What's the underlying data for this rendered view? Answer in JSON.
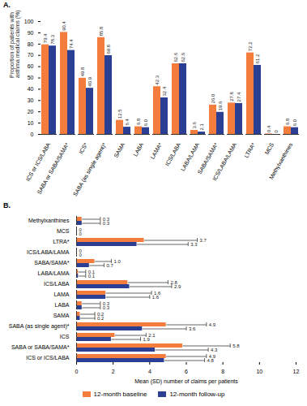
{
  "chart_data": [
    {
      "type": "bar",
      "title": "A.",
      "categories": [
        "ICS or ICS/LABA",
        "SABA or SABA/SAMA*",
        "ICS*",
        "SABA (as single agent)*",
        "SAMA",
        "LABA",
        "LAMA*",
        "ICS/LABA",
        "LABA/LAMA",
        "SABA/SAMA*",
        "ICS/LABA/LAMA",
        "LTRA*",
        "MCS",
        "Methylxanthines"
      ],
      "y_label": "Proportion of patients with asthma medical claims (%)",
      "ylim": [
        0,
        100
      ],
      "yticks": [
        0,
        10,
        20,
        30,
        40,
        50,
        60,
        70,
        80,
        90,
        100
      ],
      "data_labels": true,
      "series": [
        {
          "name": "12-month baseline",
          "color": "#f47c3c",
          "values": [
            79.4,
            90.4,
            49.8,
            85.8,
            12.5,
            6.8,
            42.3,
            62.6,
            3.6,
            26.0,
            27.8,
            72.2,
            0.4,
            6.8
          ],
          "value_labels": [
            "79.4",
            "90.4",
            "49.8",
            "85.8",
            "12.5",
            "6.8",
            "42.3",
            "62.6",
            "3.6",
            "26.0",
            "27.8",
            "72.2",
            "0.4",
            "6.8"
          ]
        },
        {
          "name": "12-month follow-up",
          "color": "#2a3e94",
          "values": [
            78.3,
            74.4,
            40.9,
            69.8,
            6.4,
            6.0,
            32.4,
            62.6,
            2.1,
            19.6,
            27.4,
            61.2,
            0,
            6.0
          ],
          "value_labels": [
            "78.3",
            "74.4",
            "40.9",
            "69.8",
            "6.4",
            "6.0",
            "32.4",
            "62.6",
            "2.1",
            "19.6",
            "27.4",
            "61.2",
            "0",
            "6.0"
          ]
        }
      ]
    },
    {
      "type": "bar",
      "title": "B.",
      "orientation": "horizontal",
      "categories": [
        "Methylxanthines",
        "MCS",
        "LTRA*",
        "ICS/LABA/LAMA",
        "SABA/SAMA*",
        "LABA/LAMA",
        "ICS/LABA",
        "LAMA",
        "LABA",
        "SAMA",
        "SABA (as single agent)*",
        "ICS",
        "SABA or SABA/SAMA*",
        "ICS or ICS/LABA"
      ],
      "x_label": "Mean (SD) number of claims per patients",
      "xlim": [
        0,
        12
      ],
      "xticks": [
        0,
        2,
        4,
        6,
        8,
        10,
        12
      ],
      "data_labels": true,
      "series": [
        {
          "name": "12-month baseline",
          "color": "#f47c3c",
          "values": [
            0.3,
            0,
            3.7,
            0,
            1.0,
            0.1,
            2.8,
            1.6,
            0.3,
            0.2,
            4.9,
            2.1,
            5.8,
            4.9
          ],
          "sd": [
            1.0,
            0,
            2.9,
            0,
            0.9,
            0.4,
            2.2,
            2.5,
            1.0,
            0.8,
            2.2,
            1.7,
            2.6,
            2.2
          ],
          "value_labels": [
            "0.3",
            "0",
            "3.7",
            "0",
            "1.0",
            "0.1",
            "2.8",
            "1.6",
            "0.3",
            "0.2",
            "4.9",
            "2.1",
            "5.8",
            "4.9"
          ]
        },
        {
          "name": "12-month follow-up",
          "color": "#2a3e94",
          "values": [
            0.3,
            0,
            3.3,
            0,
            0.7,
            0.1,
            2.9,
            1.6,
            0.3,
            0.2,
            3.6,
            1.9,
            4.3,
            4.8
          ],
          "sd": [
            1.0,
            0,
            2.8,
            0,
            0.8,
            0.4,
            2.3,
            2.4,
            1.0,
            0.8,
            2.4,
            1.6,
            2.9,
            2.2
          ],
          "value_labels": [
            "0.3",
            "0",
            "3.3",
            "0",
            "0.7",
            "0.1",
            "2.9",
            "1.6",
            "0.3",
            "0.2",
            "3.6",
            "1.9",
            "4.3",
            "4.8"
          ]
        }
      ]
    }
  ]
}
